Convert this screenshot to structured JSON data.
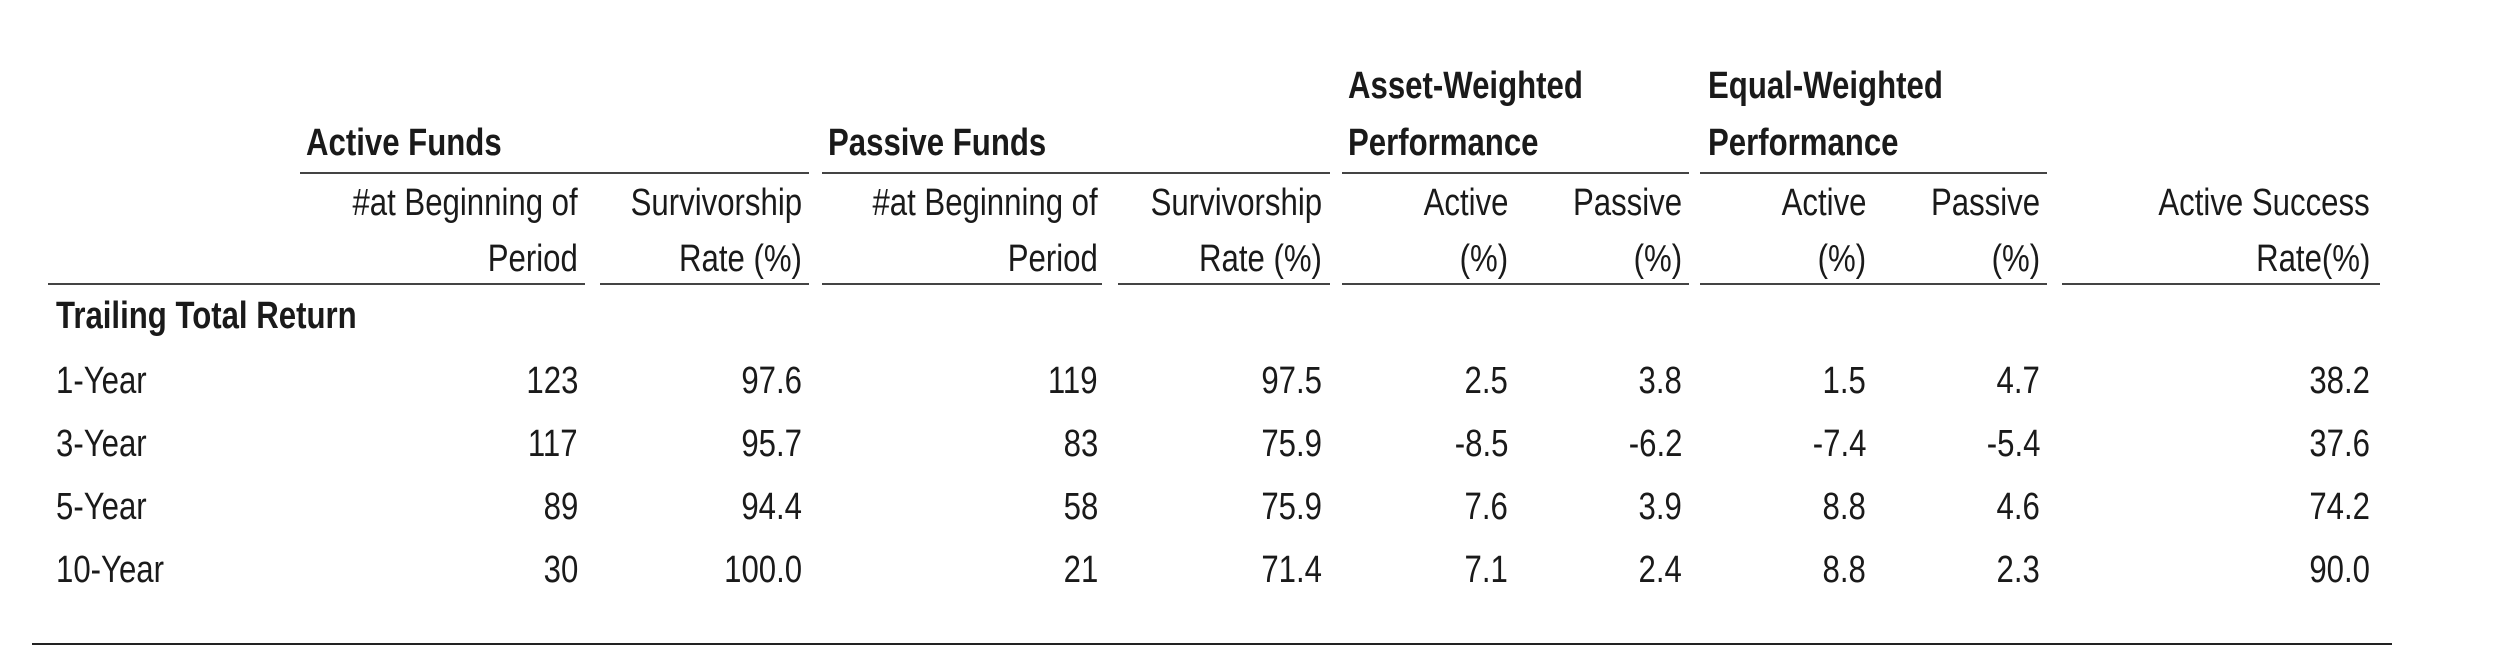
{
  "chart_data": {
    "type": "table",
    "column_groups": [
      {
        "label": "Active Funds"
      },
      {
        "label": "Passive Funds"
      },
      {
        "label_lines": [
          "Asset-Weighted",
          "Performance"
        ]
      },
      {
        "label_lines": [
          "Equal-Weighted",
          "Performance"
        ]
      }
    ],
    "columns": [
      {
        "lines": [
          "#at Beginning of",
          "Period"
        ]
      },
      {
        "lines": [
          "Survivorship",
          "Rate (%)"
        ]
      },
      {
        "lines": [
          "#at Beginning of",
          "Period"
        ]
      },
      {
        "lines": [
          "Survivorship",
          "Rate (%)"
        ]
      },
      {
        "lines": [
          "Active",
          "(%)"
        ]
      },
      {
        "lines": [
          "Passive",
          "(%)"
        ]
      },
      {
        "lines": [
          "Active",
          "(%)"
        ]
      },
      {
        "lines": [
          "Passive",
          "(%)"
        ]
      },
      {
        "lines": [
          "Active Success",
          "Rate(%)"
        ]
      }
    ],
    "section_label": "Trailing Total Return",
    "rows": [
      {
        "label": "1-Year",
        "values": [
          "123",
          "97.6",
          "119",
          "97.5",
          "2.5",
          "3.8",
          "1.5",
          "4.7",
          "38.2"
        ]
      },
      {
        "label": "3-Year",
        "values": [
          "117",
          "95.7",
          "83",
          "75.9",
          "-8.5",
          "-6.2",
          "-7.4",
          "-5.4",
          "37.6"
        ]
      },
      {
        "label": "5-Year",
        "values": [
          "89",
          "94.4",
          "58",
          "75.9",
          "7.6",
          "3.9",
          "8.8",
          "4.6",
          "74.2"
        ]
      },
      {
        "label": "10-Year",
        "values": [
          "30",
          "100.0",
          "21",
          "71.4",
          "7.1",
          "2.4",
          "8.8",
          "2.3",
          "90.0"
        ]
      }
    ]
  }
}
